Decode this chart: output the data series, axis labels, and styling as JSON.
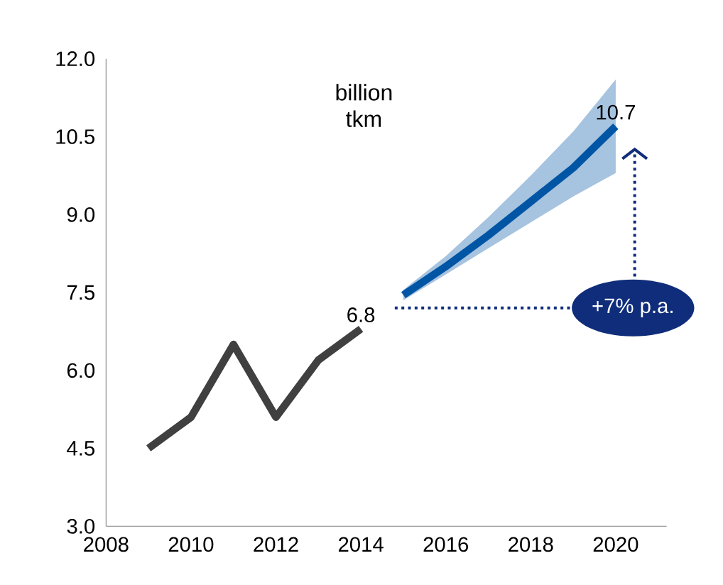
{
  "chart_data": {
    "type": "line",
    "ylabel": "billion tkm",
    "xlim": [
      2008,
      2021.2
    ],
    "ylim": [
      3.0,
      12.0
    ],
    "xticks": [
      2008,
      2010,
      2012,
      2014,
      2016,
      2018,
      2020
    ],
    "yticks": [
      {
        "value": 3,
        "label": "3.0"
      },
      {
        "value": 4.5,
        "label": "4.5"
      },
      {
        "value": 6,
        "label": "6.0"
      },
      {
        "value": 7.5,
        "label": "7.5"
      },
      {
        "value": 9,
        "label": "9.0"
      },
      {
        "value": 10.5,
        "label": "10.5"
      },
      {
        "value": 12,
        "label": "12.0"
      }
    ],
    "series": [
      {
        "color": "#404040",
        "x": [
          2009,
          2010,
          2011,
          2012,
          2013,
          2014
        ],
        "values": [
          4.5,
          5.1,
          6.5,
          5.1,
          6.2,
          6.8
        ],
        "value_labels": [
          null,
          null,
          null,
          null,
          null,
          "6.8"
        ]
      },
      {
        "color": "#0055a5",
        "x": [
          2015,
          2016,
          2017,
          2018,
          2019,
          2020
        ],
        "values": [
          7.45,
          8.0,
          8.6,
          9.25,
          9.9,
          10.7
        ],
        "lower": [
          7.35,
          7.85,
          8.35,
          8.85,
          9.35,
          9.8
        ],
        "upper": [
          7.55,
          8.2,
          8.95,
          9.75,
          10.6,
          11.6
        ],
        "value_labels": [
          null,
          null,
          null,
          null,
          null,
          "10.7"
        ]
      }
    ],
    "annotations": [
      "+7% p.a."
    ],
    "grid": false,
    "marker": "none",
    "line_style": "solid"
  }
}
